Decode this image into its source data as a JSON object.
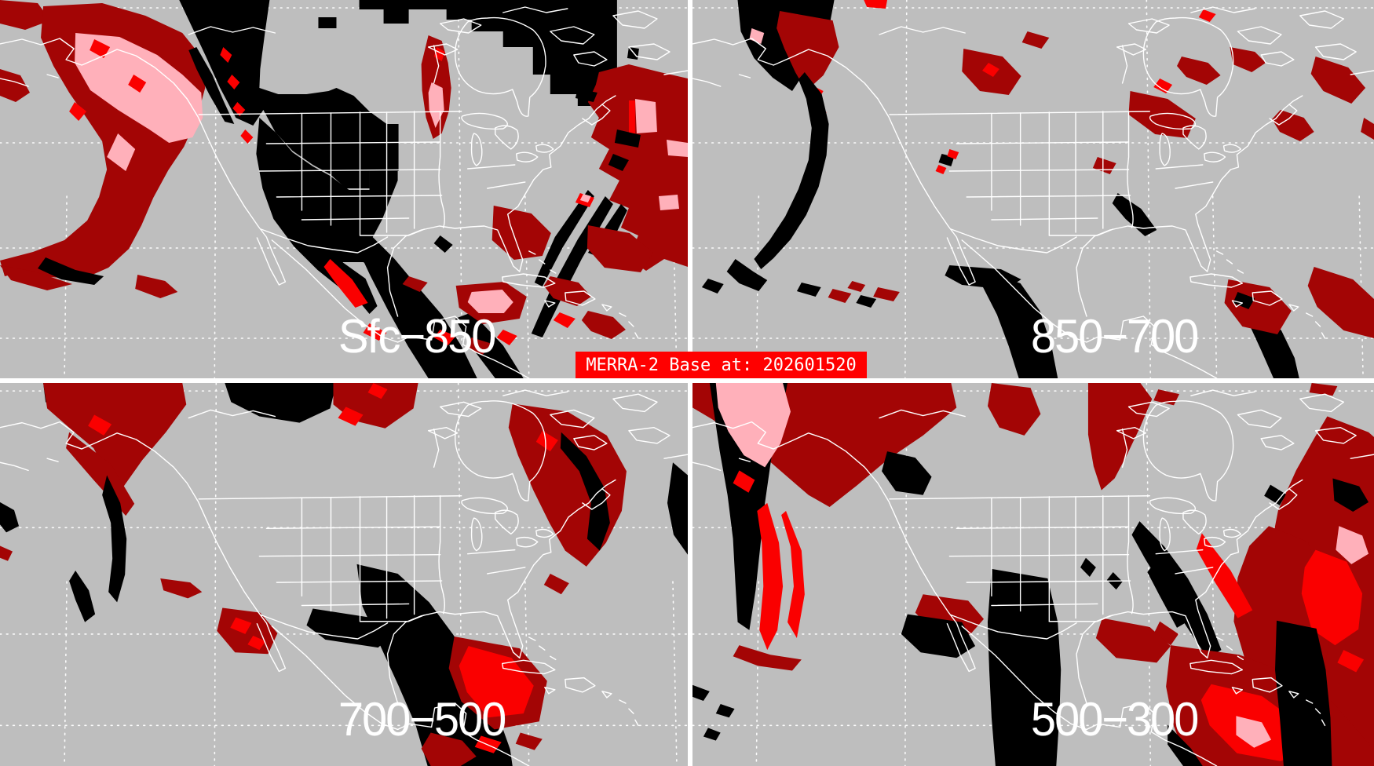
{
  "banner": {
    "text": "MERRA-2 Base at: 202601520"
  },
  "panels": [
    {
      "id": "sfc-850",
      "label": "Sfc−850",
      "position": "top-left"
    },
    {
      "id": "850-700",
      "label": "850−700",
      "position": "top-right"
    },
    {
      "id": "700-500",
      "label": "700−500",
      "position": "bottom-left"
    },
    {
      "id": "500-300",
      "label": "500−300",
      "position": "bottom-right"
    }
  ],
  "colors": {
    "background_gray": "#BEBEBE",
    "map_lines": "#FFFFFF",
    "graticule": "#FFFFFF",
    "data_black": "#000000",
    "data_dark_red": "#A30505",
    "data_red": "#FA0000",
    "data_pink": "#FFB0BA",
    "divider": "#FFFFFF",
    "label_text": "#FFFFFF",
    "banner_bg": "#FF0000",
    "banner_fg": "#FFFFFF"
  }
}
